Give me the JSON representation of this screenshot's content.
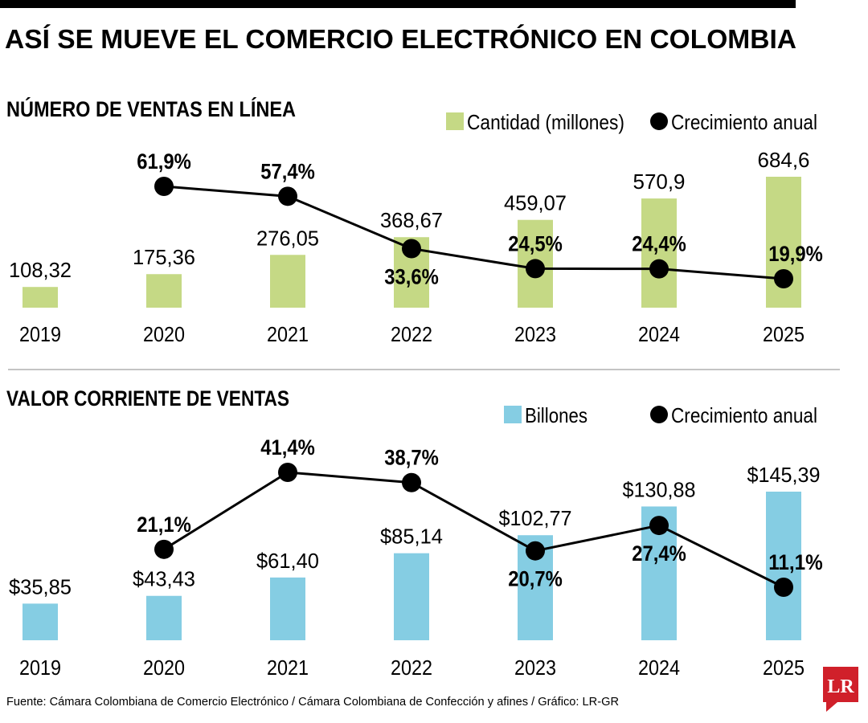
{
  "title": "ASÍ SE MUEVE EL COMERCIO ELECTRÓNICO EN COLOMBIA",
  "source": "Fuente: Cámara Colombiana de Comercio Electrónico / Cámara Colombiana de Confección y afines / Gráfico: LR-GR",
  "logo": "LR",
  "colors": {
    "green": "#c5d985",
    "blue": "#85cde3",
    "line": "#000000",
    "logo": "#d0202a"
  },
  "chart_data": [
    {
      "type": "bar+line",
      "title": "NÚMERO DE VENTAS EN LÍNEA",
      "categories": [
        "2019",
        "2020",
        "2021",
        "2022",
        "2023",
        "2024",
        "2025"
      ],
      "series": [
        {
          "name": "Cantidad (millones)",
          "type": "bar",
          "values": [
            108.32,
            175.36,
            276.05,
            368.67,
            459.07,
            570.9,
            684.6
          ],
          "labels": [
            "108,32",
            "175,36",
            "276,05",
            "368,67",
            "459,07",
            "570,9",
            "684,6"
          ]
        },
        {
          "name": "Crecimiento anual",
          "type": "line",
          "values": [
            null,
            61.9,
            57.4,
            33.6,
            24.5,
            24.4,
            19.9
          ],
          "labels": [
            "",
            "61,9%",
            "57,4%",
            "33,6%",
            "24,5%",
            "24,4%",
            "19,9%"
          ]
        }
      ]
    },
    {
      "type": "bar+line",
      "title": "VALOR CORRIENTE DE VENTAS",
      "categories": [
        "2019",
        "2020",
        "2021",
        "2022",
        "2023",
        "2024",
        "2025"
      ],
      "series": [
        {
          "name": "Billones",
          "type": "bar",
          "values": [
            35.85,
            43.43,
            61.4,
            85.14,
            102.77,
            130.88,
            145.39
          ],
          "labels": [
            "$35,85",
            "$43,43",
            "$61,40",
            "$85,14",
            "$102,77",
            "$130,88",
            "$145,39"
          ]
        },
        {
          "name": "Crecimiento anual",
          "type": "line",
          "values": [
            null,
            21.1,
            41.4,
            38.7,
            20.7,
            27.4,
            11.1
          ],
          "labels": [
            "",
            "21,1%",
            "41,4%",
            "38,7%",
            "20,7%",
            "27,4%",
            "11,1%"
          ]
        }
      ]
    }
  ]
}
